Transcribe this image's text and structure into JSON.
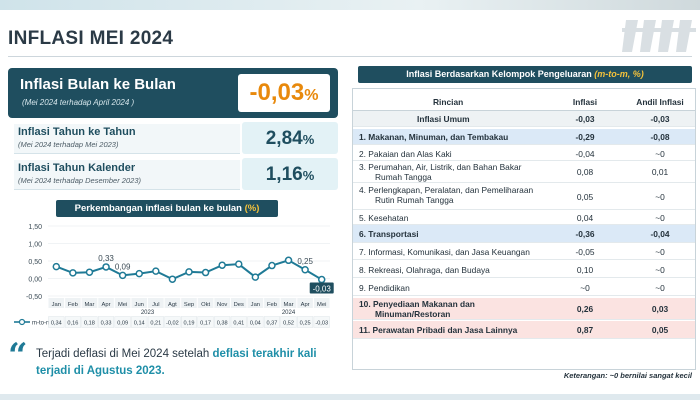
{
  "title": "INFLASI MEI 2024",
  "logo_icon": "bps-logo-icon",
  "monthly": {
    "label": "Inflasi Bulan ke Bulan",
    "sub": "(Mei 2024 terhadap April 2024 )",
    "value": "-0,03",
    "unit": "%"
  },
  "yearly": {
    "label": "Inflasi Tahun ke Tahun",
    "sub": "(Mei 2024 terhadap Mei 2023)",
    "value": "2,84",
    "unit": "%"
  },
  "calendar": {
    "label": "Inflasi Tahun Kalender",
    "sub": "(Mei 2024 terhadap Desember 2023)",
    "value": "1,16",
    "unit": "%"
  },
  "chart_title": {
    "text": "Perkembangan inflasi bulan ke bulan ",
    "unit": "(%)"
  },
  "chart_data": {
    "type": "line",
    "categories": [
      "Jan",
      "Feb",
      "Mar",
      "Apr",
      "Mei",
      "Jun",
      "Jul",
      "Agt",
      "Sep",
      "Okt",
      "Nov",
      "Des",
      "Jan",
      "Feb",
      "Mar",
      "Apr",
      "Mei"
    ],
    "year_labels": [
      "2023",
      "2024"
    ],
    "series": [
      {
        "name": "m-to-m",
        "values": [
          0.34,
          0.16,
          0.18,
          0.33,
          0.09,
          0.14,
          0.21,
          -0.02,
          0.19,
          0.17,
          0.38,
          0.41,
          0.04,
          0.37,
          0.52,
          0.25,
          -0.03
        ]
      }
    ],
    "value_labels": [
      "0,34",
      "0,16",
      "0,18",
      "0,33",
      "0,09",
      "0,14",
      "0,21",
      "-0,02",
      "0,19",
      "0,17",
      "0,38",
      "0,41",
      "0,04",
      "0,37",
      "0,52",
      "0,25",
      "-0,03"
    ],
    "annotations": [
      {
        "index": 3,
        "text": "0,33"
      },
      {
        "index": 4,
        "text": "0,09"
      },
      {
        "index": 15,
        "text": "0,25"
      },
      {
        "index": 16,
        "text": "-0,03"
      }
    ],
    "yticks": [
      "1,50",
      "1,00",
      "0,50",
      "0,00",
      "-0,50"
    ],
    "ylim": [
      -0.5,
      1.5
    ],
    "grid": true,
    "color": "#1f7a96"
  },
  "quote": {
    "text_a": "Terjadi deflasi di Mei 2024 setelah ",
    "highlight": "deflasi terakhir kali terjadi di Agustus 2023.",
    "text_b": ""
  },
  "table": {
    "title": "Inflasi Berdasarkan Kelompok Pengeluaran ",
    "title_em": "(m-to-m, %)",
    "headers": [
      "Rincian",
      "Inflasi",
      "Andil Inflasi"
    ],
    "rows": [
      {
        "name": "Inflasi Umum",
        "inflasi": "-0,03",
        "andil": "-0,03",
        "style": "total"
      },
      {
        "name": "1.  Makanan, Minuman, dan Tembakau",
        "inflasi": "-0,29",
        "andil": "-0,08",
        "style": "blue"
      },
      {
        "name": "2.  Pakaian dan Alas Kaki",
        "inflasi": "-0,04",
        "andil": "~0",
        "style": "plain"
      },
      {
        "name": "3.  Perumahan, Air, Listrik, dan Bahan Bakar",
        "name2": "Rumah Tangga",
        "inflasi": "0,08",
        "andil": "0,01",
        "style": "plain"
      },
      {
        "name": "4.  Perlengkapan, Peralatan, dan Pemeliharaan",
        "name2": "Rutin Rumah Tangga",
        "inflasi": "0,05",
        "andil": "~0",
        "style": "plain"
      },
      {
        "name": "5.  Kesehatan",
        "inflasi": "0,04",
        "andil": "~0",
        "style": "plain"
      },
      {
        "name": "6.  Transportasi",
        "inflasi": "-0,36",
        "andil": "-0,04",
        "style": "blue"
      },
      {
        "name": "7.  Informasi, Komunikasi, dan Jasa Keuangan",
        "inflasi": "-0,05",
        "andil": "~0",
        "style": "plain"
      },
      {
        "name": "8.  Rekreasi, Olahraga, dan Budaya",
        "inflasi": "0,10",
        "andil": "~0",
        "style": "plain"
      },
      {
        "name": "9.  Pendidikan",
        "inflasi": "~0",
        "andil": "~0",
        "style": "plain"
      },
      {
        "name": "10. Penyediaan Makanan dan",
        "name2": "Minuman/Restoran",
        "inflasi": "0,26",
        "andil": "0,03",
        "style": "red"
      },
      {
        "name": "11. Perawatan Pribadi dan Jasa Lainnya",
        "inflasi": "0,87",
        "andil": "0,05",
        "style": "red"
      }
    ],
    "note": "Keterangan: ~0 bernilai sangat kecil"
  },
  "colors": {
    "dark_teal": "#1f4e5f",
    "accent_orange": "#e8890c",
    "highlight_blue": "#dbe9f7",
    "highlight_red": "#fbe3e1",
    "line": "#1f7a96"
  }
}
